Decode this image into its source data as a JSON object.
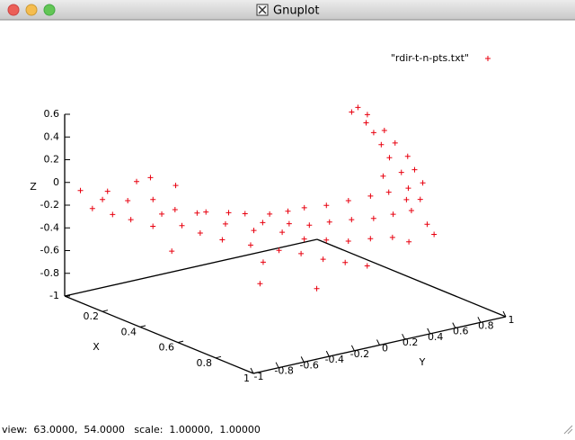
{
  "window": {
    "title": "Gnuplot",
    "status": "view:  63.0000,  54.0000   scale:  1.00000,  1.00000"
  },
  "chart_data": {
    "type": "scatter3d",
    "xlabel": "X",
    "ylabel": "Y",
    "zlabel": "Z",
    "xlim": [
      0,
      1
    ],
    "ylim": [
      -1,
      1
    ],
    "zlim": [
      -1,
      0.6
    ],
    "xticks": [
      0.2,
      0.4,
      0.6,
      0.8,
      1
    ],
    "yticks": [
      -1,
      -0.8,
      -0.6,
      -0.4,
      -0.2,
      0,
      0.2,
      0.4,
      0.6,
      0.8,
      1
    ],
    "zticks": [
      -1,
      -0.8,
      -0.6,
      -0.4,
      -0.2,
      0,
      0.2,
      0.4,
      0.6
    ],
    "series": [
      {
        "name": "\"rdir-t-n-pts.txt\"",
        "color": "#e8000f",
        "x": [
          0.05,
          0.08,
          0.1,
          0.12,
          0.06,
          0.15,
          0.1,
          0.2,
          0.08,
          0.12,
          0.18,
          0.1,
          0.22,
          0.15,
          0.25,
          0.12,
          0.2,
          0.3,
          0.18,
          0.25,
          0.35,
          0.2,
          0.3,
          0.4,
          0.22,
          0.28,
          0.35,
          0.45,
          0.25,
          0.32,
          0.4,
          0.5,
          0.28,
          0.36,
          0.45,
          0.55,
          0.3,
          0.4,
          0.5,
          0.6,
          0.35,
          0.45,
          0.55,
          0.4,
          0.5,
          0.6,
          0.45,
          0.55,
          0.5,
          0.6,
          0.45,
          0.55,
          0.5,
          0.6,
          0.45,
          0.55,
          0.5,
          0.58,
          0.42,
          0.52,
          0.4,
          0.48,
          0.38,
          0.45,
          0.35,
          0.33,
          0.4,
          0.65,
          0.7,
          0.62,
          0.3,
          0.5,
          0.6,
          0.45
        ],
        "y": [
          -0.95,
          -0.9,
          -0.85,
          -0.8,
          -0.75,
          -0.7,
          -0.65,
          -0.6,
          -0.55,
          -0.5,
          -0.5,
          -0.45,
          -0.4,
          -0.35,
          -0.3,
          -0.3,
          -0.25,
          -0.2,
          -0.15,
          -0.1,
          -0.05,
          0,
          0.05,
          0.1,
          0.1,
          0.15,
          0.2,
          0.2,
          0.25,
          0.3,
          0.3,
          0.3,
          0.35,
          0.4,
          0.4,
          0.4,
          0.45,
          0.5,
          0.5,
          0.5,
          0.55,
          0.6,
          0.6,
          0.65,
          0.7,
          0.7,
          0.75,
          0.78,
          0.82,
          0.85,
          0.85,
          0.9,
          0.92,
          0.92,
          0.9,
          0.95,
          0.96,
          0.97,
          0.88,
          0.94,
          0.85,
          0.9,
          0.82,
          0.86,
          0.8,
          0.78,
          0.8,
          0.9,
          0.88,
          0.8,
          -0.6,
          -0.2,
          0.1,
          -0.1
        ],
        "z": [
          -0.05,
          -0.2,
          -0.12,
          -0.25,
          -0.1,
          -0.3,
          -0.18,
          -0.35,
          -0.05,
          0,
          -0.28,
          -0.22,
          -0.38,
          -0.3,
          -0.45,
          -0.12,
          -0.32,
          -0.5,
          -0.35,
          -0.42,
          -0.55,
          -0.38,
          -0.48,
          -0.6,
          -0.4,
          -0.45,
          -0.5,
          -0.62,
          -0.42,
          -0.47,
          -0.55,
          -0.66,
          -0.4,
          -0.48,
          -0.55,
          -0.68,
          -0.38,
          -0.45,
          -0.55,
          -0.7,
          -0.35,
          -0.42,
          -0.52,
          -0.3,
          -0.4,
          -0.5,
          -0.25,
          -0.35,
          -0.2,
          -0.3,
          -0.1,
          -0.15,
          -0.05,
          -0.22,
          0.05,
          0,
          -0.3,
          -0.1,
          0.15,
          0.1,
          0.25,
          0.2,
          0.33,
          0.3,
          0.45,
          0.4,
          0.42,
          -0.4,
          -0.45,
          -0.55,
          -0.5,
          -0.75,
          -0.8,
          -0.62
        ]
      }
    ]
  }
}
